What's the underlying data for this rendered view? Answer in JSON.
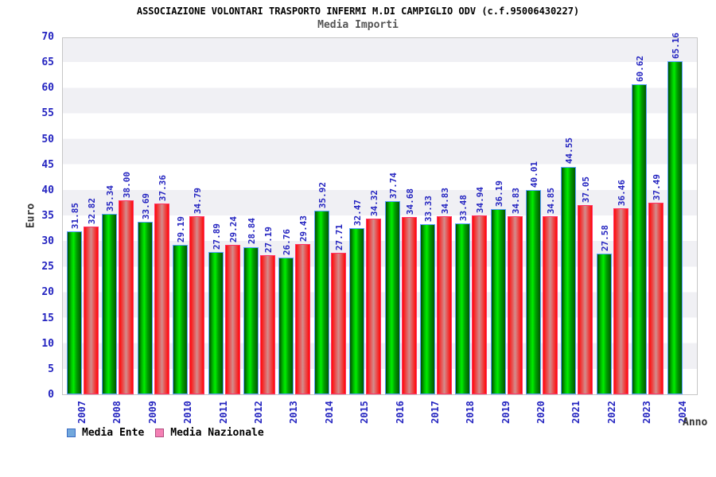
{
  "header": {
    "title": "ASSOCIAZIONE VOLONTARI TRASPORTO INFERMI M.DI CAMPIGLIO ODV (c.f.95006430227)",
    "subtitle": "Media Importi"
  },
  "chart_data": {
    "type": "bar",
    "title": "Media Importi",
    "categories": [
      "2007",
      "2008",
      "2009",
      "2010",
      "2011",
      "2012",
      "2013",
      "2014",
      "2015",
      "2016",
      "2017",
      "2018",
      "2019",
      "2020",
      "2021",
      "2022",
      "2023",
      "2024"
    ],
    "series": [
      {
        "name": "Media Ente",
        "values": [
          31.85,
          35.34,
          33.69,
          29.19,
          27.89,
          28.84,
          26.76,
          35.92,
          32.47,
          37.74,
          33.33,
          33.48,
          36.19,
          40.01,
          44.55,
          27.58,
          60.62,
          65.16
        ]
      },
      {
        "name": "Media Nazionale",
        "values": [
          32.82,
          38.0,
          37.36,
          34.79,
          29.24,
          27.19,
          29.43,
          27.71,
          34.32,
          34.68,
          34.83,
          34.94,
          34.83,
          34.85,
          37.05,
          36.46,
          37.49,
          null
        ]
      }
    ],
    "xlabel": "Anno",
    "ylabel": "Euro",
    "ylim": [
      0,
      70
    ],
    "ytick_step": 5,
    "value_label_decimals": 2,
    "grid": "alternating-horizontal-bands",
    "legend_position": "bottom-left"
  },
  "colors": {
    "bar_media_ente": "#00ee00",
    "bar_media_ente_border": "#5aa0ff",
    "bar_media_nazionale": "#ff0808",
    "bar_media_nazionale_border": "#ff3366",
    "tick_and_value_text": "#2424c0",
    "band_stripe": "#f0f0f4",
    "legend_ente_swatch": "#72a8dc",
    "legend_nazionale_swatch": "#f480b4",
    "axis_title_text": "#333333"
  }
}
